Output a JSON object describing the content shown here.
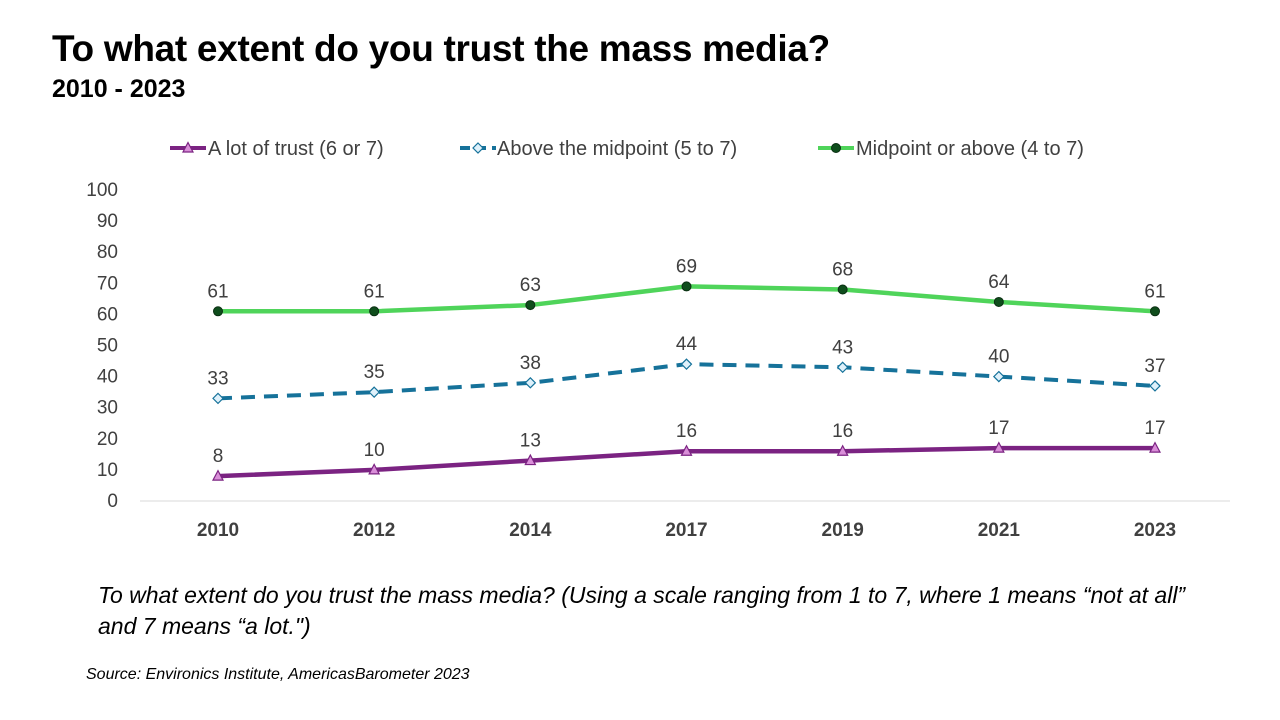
{
  "title": "To what extent do you trust the mass media?",
  "subtitle": "2010 - 2023",
  "question": "To what extent do you trust the mass media? (Using a scale ranging from 1 to 7, where 1 means “not at all” and 7 means “a lot.\")",
  "source": "Source: Environics Institute, AmericasBarometer 2023",
  "chart_data": {
    "type": "line",
    "title": "To what extent do you trust the mass media?",
    "subtitle": "2010 - 2023",
    "x": [
      "2010",
      "2012",
      "2014",
      "2017",
      "2019",
      "2021",
      "2023"
    ],
    "ylim": [
      0,
      100
    ],
    "yticks": [
      0,
      10,
      20,
      30,
      40,
      50,
      60,
      70,
      80,
      90,
      100
    ],
    "grid": false,
    "legend_position": "top",
    "data_labels": true,
    "series": [
      {
        "name": "A lot of trust (6 or 7)",
        "values": [
          8,
          10,
          13,
          16,
          16,
          17,
          17
        ],
        "color": "#7b2382",
        "marker": "triangle",
        "marker_color": "#d98ed8",
        "line_style": "solid"
      },
      {
        "name": "Above the midpoint (5 to 7)",
        "values": [
          33,
          35,
          38,
          44,
          43,
          40,
          37
        ],
        "color": "#16729a",
        "marker": "diamond",
        "marker_color": "#dff1fb",
        "line_style": "dashed"
      },
      {
        "name": "Midpoint or above (4 to 7)",
        "values": [
          61,
          61,
          63,
          69,
          68,
          64,
          61
        ],
        "color": "#4fd45a",
        "marker": "circle",
        "marker_color": "#0f4d1c",
        "line_style": "solid"
      }
    ]
  }
}
